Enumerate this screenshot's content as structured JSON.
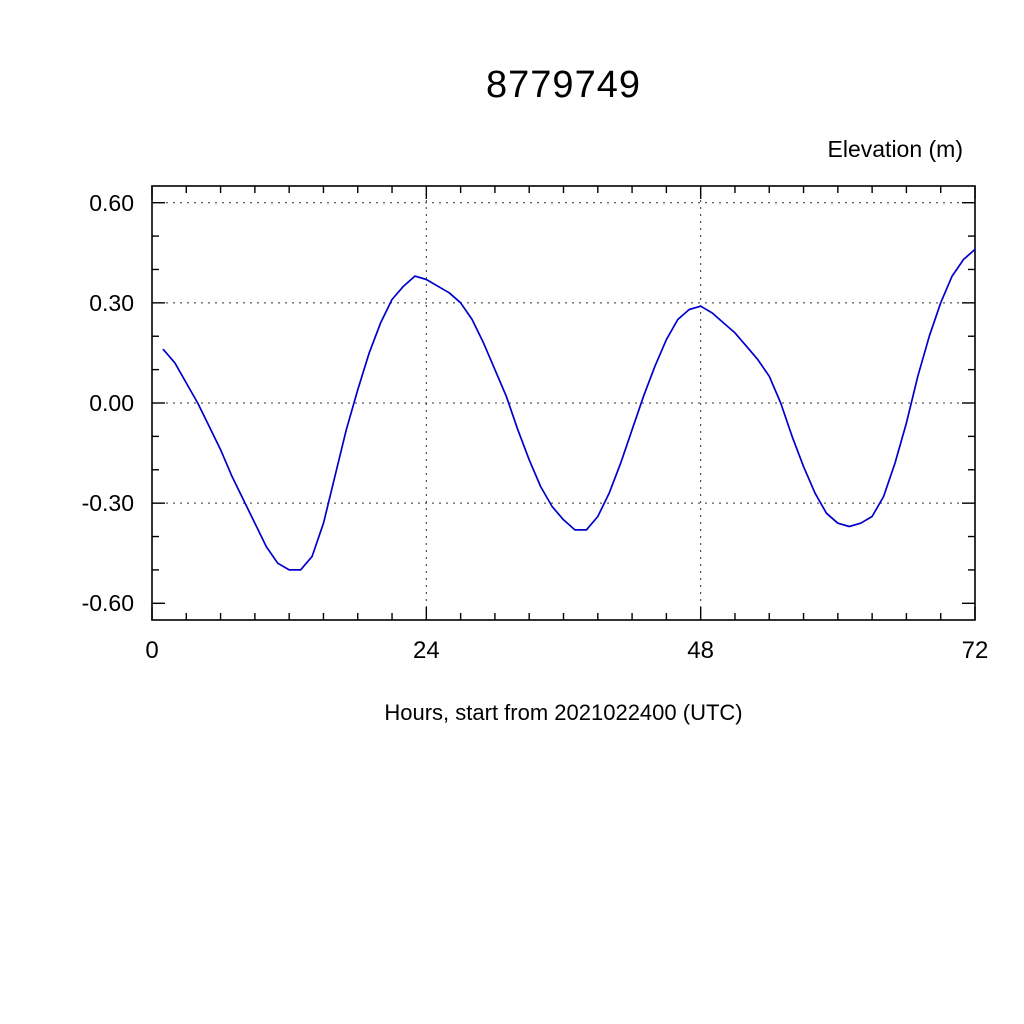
{
  "chart_data": {
    "type": "line",
    "title": "8779749",
    "ylabel": "Elevation (m)",
    "xlabel": "Hours, start from 2021022400 (UTC)",
    "line_color": "#0000cc",
    "grid_color": "#333333",
    "axis_color": "#000000",
    "grid": "dashed",
    "legend": "none",
    "xlim": [
      0,
      72
    ],
    "ylim": [
      -0.65,
      0.65
    ],
    "x_major_ticks": [
      0,
      24,
      48,
      72
    ],
    "x_tick_labels": [
      "0",
      "24",
      "48",
      "72"
    ],
    "x_minor_step": 3,
    "y_major_ticks": [
      -0.6,
      -0.3,
      0.0,
      0.3,
      0.6
    ],
    "y_tick_labels": [
      "-0.60",
      "-0.30",
      "0.00",
      "0.30",
      "0.60"
    ],
    "y_minor_step": 0.1,
    "y_tick_range": [
      -0.6,
      0.6
    ],
    "x_gridlines": [
      24,
      48
    ],
    "y_gridlines": [
      -0.3,
      0.0,
      0.3,
      0.6
    ],
    "series": [
      {
        "name": "elevation",
        "x": [
          1,
          2,
          3,
          4,
          5,
          6,
          7,
          8,
          9,
          10,
          11,
          12,
          13,
          14,
          15,
          16,
          17,
          18,
          19,
          20,
          21,
          22,
          23,
          24,
          25,
          26,
          27,
          28,
          29,
          30,
          31,
          32,
          33,
          34,
          35,
          36,
          37,
          38,
          39,
          40,
          41,
          42,
          43,
          44,
          45,
          46,
          47,
          48,
          49,
          50,
          51,
          52,
          53,
          54,
          55,
          56,
          57,
          58,
          59,
          60,
          61,
          62,
          63,
          64,
          65,
          66,
          67,
          68,
          69,
          70,
          71,
          72
        ],
        "y": [
          0.16,
          0.12,
          0.06,
          0.0,
          -0.07,
          -0.14,
          -0.22,
          -0.29,
          -0.36,
          -0.43,
          -0.48,
          -0.5,
          -0.5,
          -0.46,
          -0.36,
          -0.22,
          -0.08,
          0.04,
          0.15,
          0.24,
          0.31,
          0.35,
          0.38,
          0.37,
          0.35,
          0.33,
          0.3,
          0.25,
          0.18,
          0.1,
          0.02,
          -0.08,
          -0.17,
          -0.25,
          -0.31,
          -0.35,
          -0.38,
          -0.38,
          -0.34,
          -0.27,
          -0.18,
          -0.08,
          0.02,
          0.11,
          0.19,
          0.25,
          0.28,
          0.29,
          0.27,
          0.24,
          0.21,
          0.17,
          0.13,
          0.08,
          0.0,
          -0.1,
          -0.19,
          -0.27,
          -0.33,
          -0.36,
          -0.37,
          -0.36,
          -0.34,
          -0.28,
          -0.18,
          -0.06,
          0.08,
          0.2,
          0.3,
          0.38,
          0.43,
          0.46
        ]
      }
    ]
  }
}
